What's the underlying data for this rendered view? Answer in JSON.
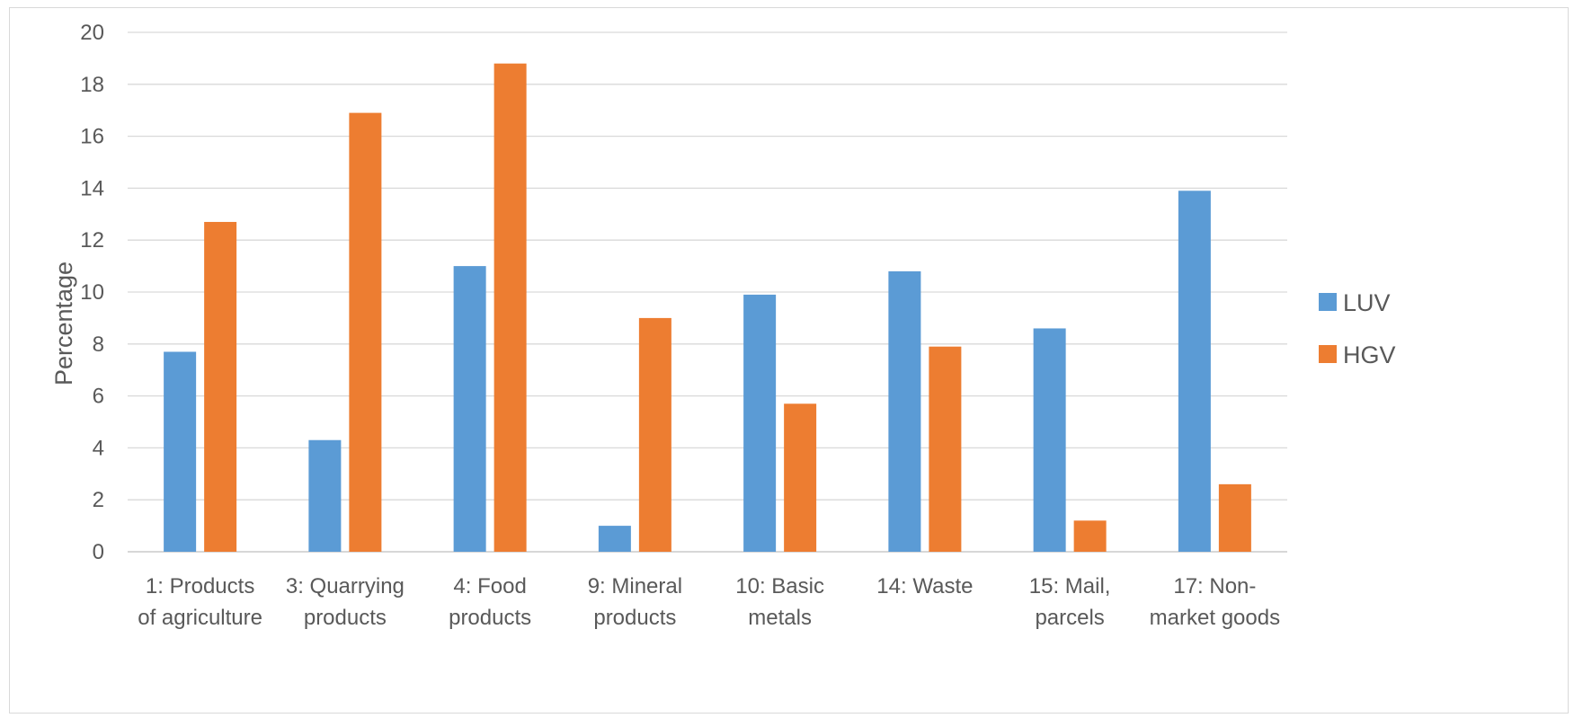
{
  "chart_data": {
    "type": "bar",
    "title": "",
    "xlabel": "",
    "ylabel": "Percentage",
    "ylim": [
      0,
      20
    ],
    "ytick_step": 2,
    "grid": true,
    "legend_position": "right",
    "categories": [
      [
        "1: Products",
        "of agriculture"
      ],
      [
        "3: Quarrying",
        "products"
      ],
      [
        "4: Food",
        "products"
      ],
      [
        "9: Mineral",
        "products"
      ],
      [
        "10: Basic",
        "metals"
      ],
      [
        "14: Waste"
      ],
      [
        "15: Mail,",
        "parcels"
      ],
      [
        "17: Non-",
        "market goods"
      ]
    ],
    "series": [
      {
        "name": "LUV",
        "color": "#5b9bd5",
        "values": [
          7.7,
          4.3,
          11.0,
          1.0,
          9.9,
          10.8,
          8.6,
          13.9
        ]
      },
      {
        "name": "HGV",
        "color": "#ed7d31",
        "values": [
          12.7,
          16.9,
          18.8,
          9.0,
          5.7,
          7.9,
          1.2,
          2.6
        ]
      }
    ]
  }
}
